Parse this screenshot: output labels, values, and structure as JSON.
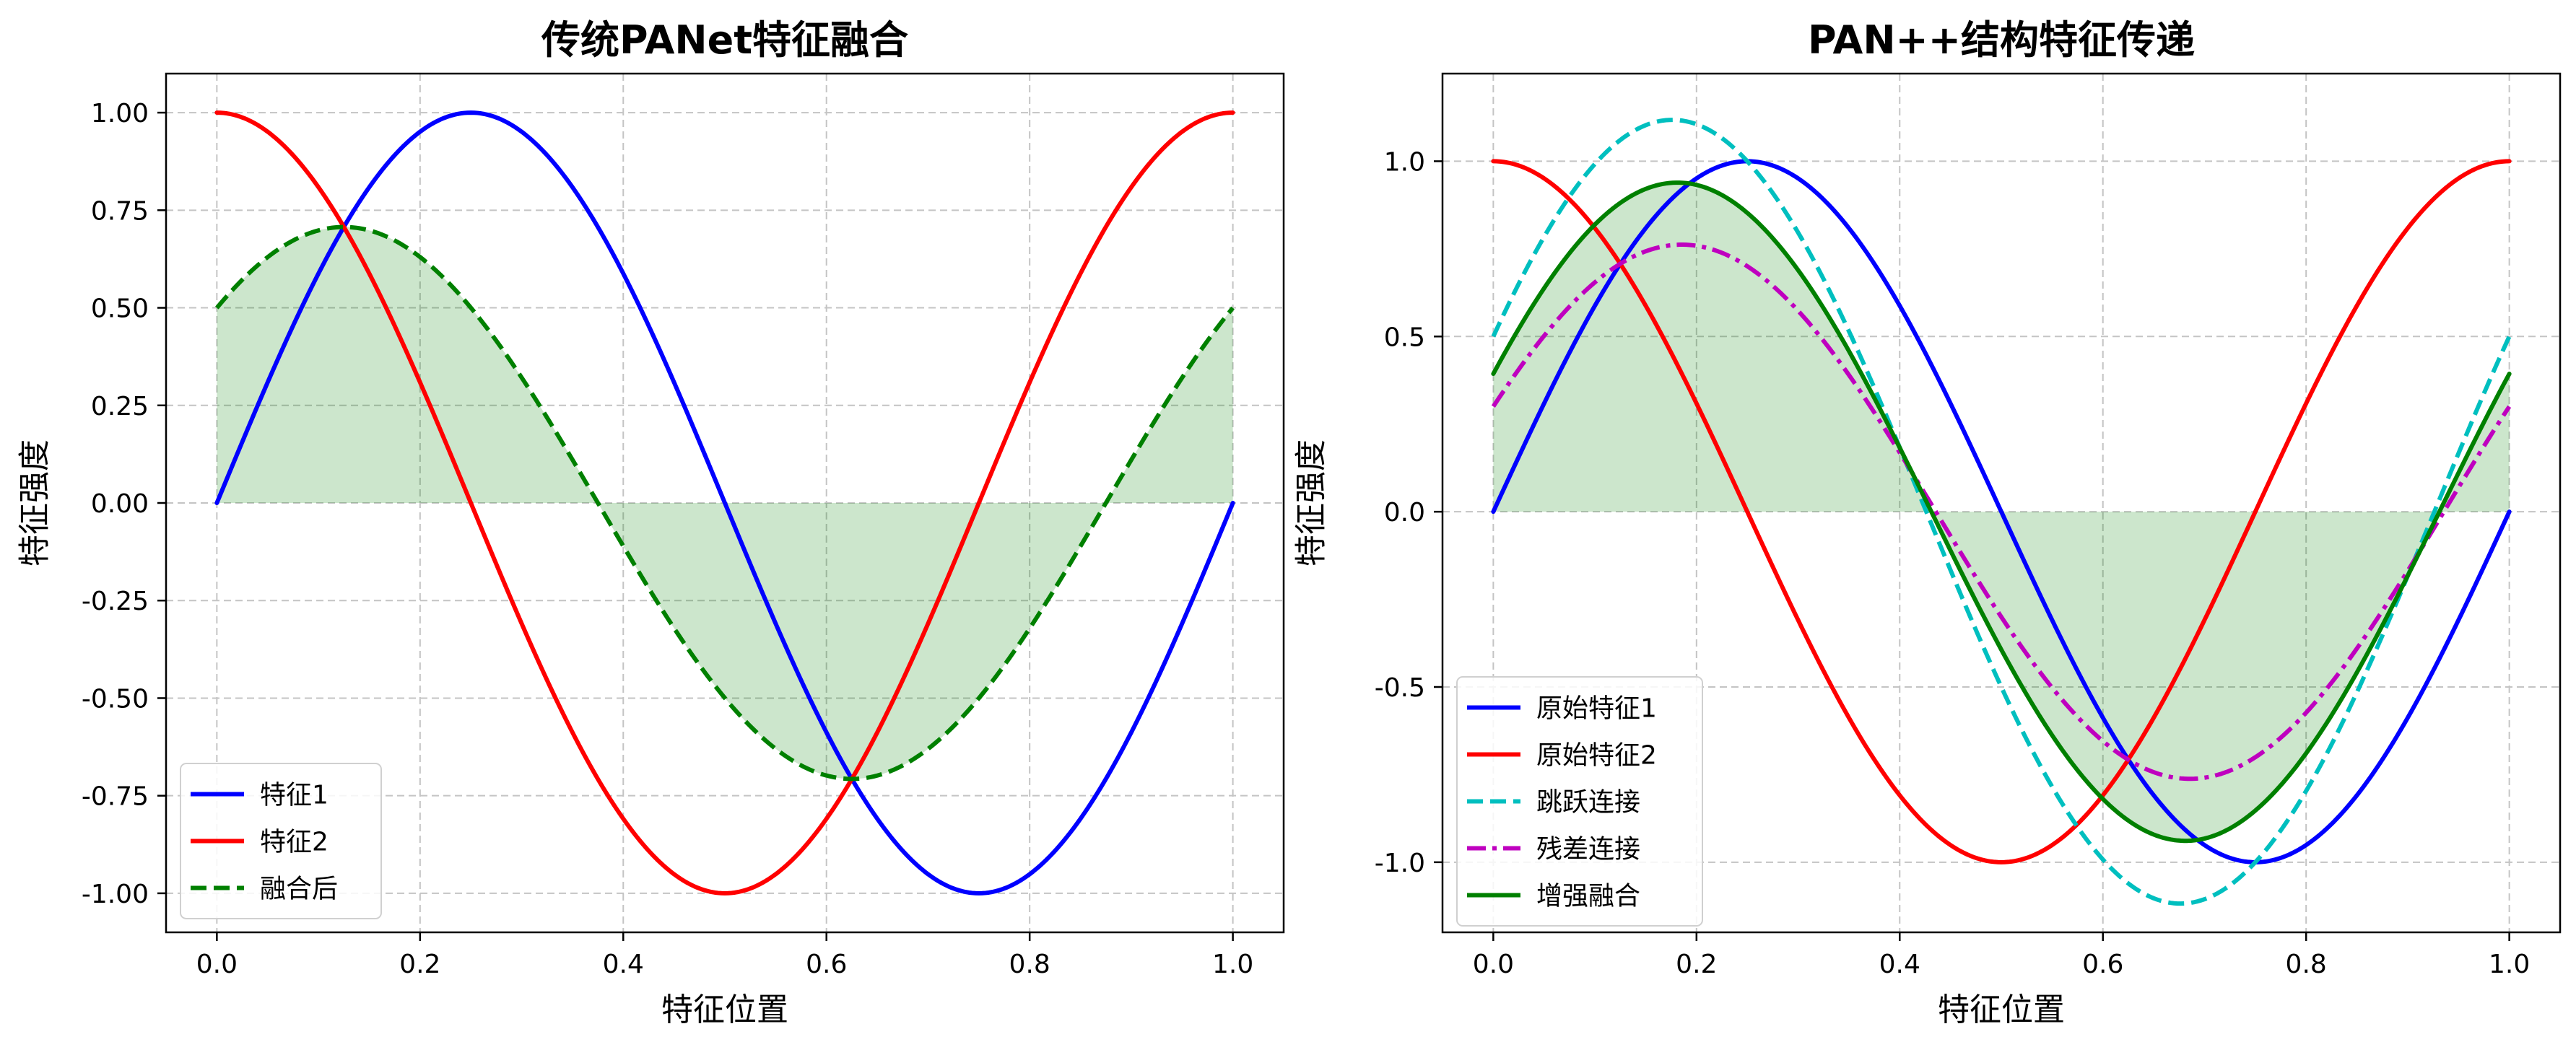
{
  "chart_data": [
    {
      "type": "line",
      "title": "传统PANet特征融合",
      "xlabel": "特征位置",
      "ylabel": "特征强度",
      "xlim": [
        -0.05,
        1.05
      ],
      "ylim": [
        -1.1,
        1.1
      ],
      "grid": true,
      "legend_position": "lower-left",
      "xticks": [
        0.0,
        0.2,
        0.4,
        0.6,
        0.8,
        1.0
      ],
      "xtick_labels": [
        "0.0",
        "0.2",
        "0.4",
        "0.6",
        "0.8",
        "1.0"
      ],
      "yticks": [
        1.0,
        0.75,
        0.5,
        0.25,
        0.0,
        -0.25,
        -0.5,
        -0.75,
        -1.0
      ],
      "ytick_labels": [
        "1.00",
        "0.75",
        "0.50",
        "0.25",
        "0.00",
        "-0.25",
        "-0.50",
        "-0.75",
        "-1.00"
      ],
      "fill_series": "融合后",
      "series": [
        {
          "name": "特征1",
          "color": "#0000ff",
          "style": "solid",
          "func": "sin",
          "amplitude": 1.0,
          "phase": 0.0
        },
        {
          "name": "特征2",
          "color": "#ff0000",
          "style": "solid",
          "func": "cos",
          "amplitude": 1.0,
          "phase": 0.0
        },
        {
          "name": "融合后",
          "color": "#008000",
          "style": "dashed",
          "func": "sin",
          "amplitude": 0.707,
          "phase": 0.785
        }
      ]
    },
    {
      "type": "line",
      "title": "PAN++结构特征传递",
      "xlabel": "特征位置",
      "ylabel": "特征强度",
      "xlim": [
        -0.05,
        1.05
      ],
      "ylim": [
        -1.2,
        1.25
      ],
      "grid": true,
      "legend_position": "lower-left",
      "xticks": [
        0.0,
        0.2,
        0.4,
        0.6,
        0.8,
        1.0
      ],
      "xtick_labels": [
        "0.0",
        "0.2",
        "0.4",
        "0.6",
        "0.8",
        "1.0"
      ],
      "yticks": [
        1.0,
        0.5,
        0.0,
        -0.5,
        -1.0
      ],
      "ytick_labels": [
        "1.0",
        "0.5",
        "0.0",
        "-0.5",
        "-1.0"
      ],
      "fill_series": "增强融合",
      "series": [
        {
          "name": "原始特征1",
          "color": "#0000ff",
          "style": "solid",
          "func": "sin",
          "amplitude": 1.0,
          "phase": 0.0
        },
        {
          "name": "原始特征2",
          "color": "#ff0000",
          "style": "solid",
          "func": "cos",
          "amplitude": 1.0,
          "phase": 0.0
        },
        {
          "name": "跳跃连接",
          "color": "#00bfbf",
          "style": "dashed",
          "func": "sin",
          "amplitude": 1.118,
          "phase": 0.4636
        },
        {
          "name": "残差连接",
          "color": "#bf00bf",
          "style": "dashdot",
          "func": "sin",
          "amplitude": 0.762,
          "phase": 0.4049
        },
        {
          "name": "增强融合",
          "color": "#008000",
          "style": "solid",
          "func": "sin",
          "amplitude": 0.939,
          "phase": 0.4324
        }
      ]
    }
  ]
}
